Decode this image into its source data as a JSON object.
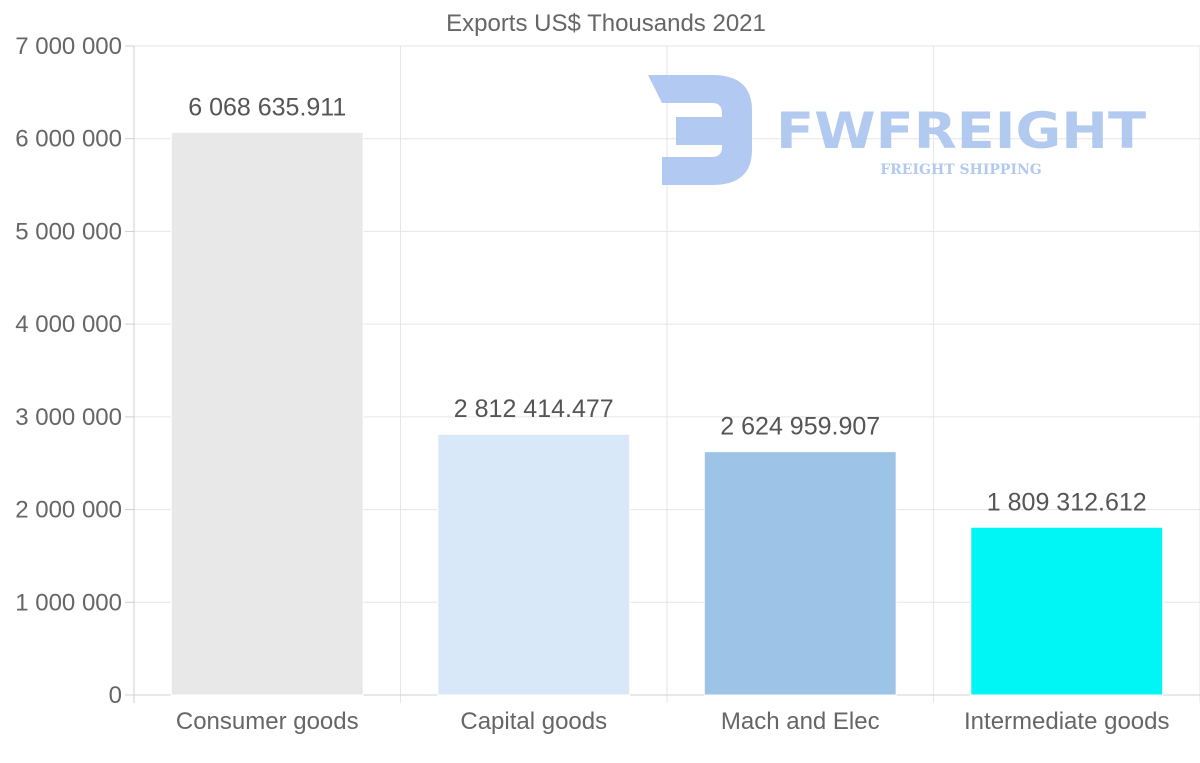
{
  "chart_data": {
    "type": "bar",
    "title": "Exports US$ Thousands 2021",
    "categories": [
      "Consumer goods",
      "Capital goods",
      "Mach and Elec",
      "Intermediate goods"
    ],
    "values": [
      6068635.911,
      2812414.477,
      2624959.907,
      1809312.612
    ],
    "value_labels": [
      "6 068 635.911",
      "2 812 414.477",
      "2 624 959.907",
      "1 809 312.612"
    ],
    "colors": [
      "#e8e8e8",
      "#d9e8f8",
      "#9dc3e6",
      "#00f5f5"
    ],
    "ylim": [
      0,
      7000000
    ],
    "yticks": [
      0,
      1000000,
      2000000,
      3000000,
      4000000,
      5000000,
      6000000,
      7000000
    ],
    "ytick_labels": [
      "0",
      "1 000 000",
      "2 000 000",
      "3 000 000",
      "4 000 000",
      "5 000 000",
      "6 000 000",
      "7 000 000"
    ],
    "xlabel": "",
    "ylabel": "",
    "grid": true
  },
  "watermark": {
    "brand": "FWFREIGHT",
    "tagline": "FREIGHT SHIPPING"
  }
}
